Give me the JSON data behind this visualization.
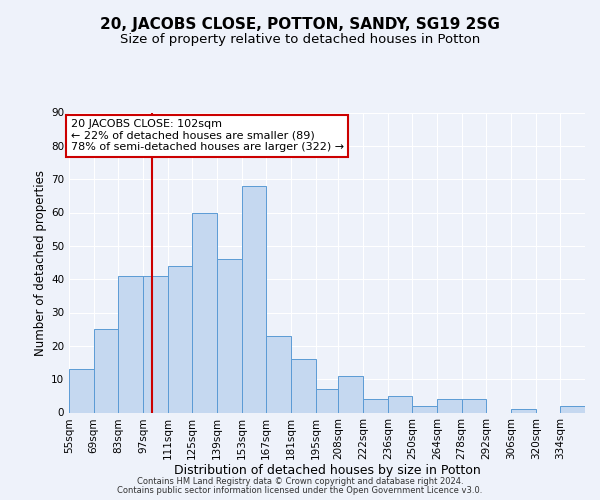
{
  "title": "20, JACOBS CLOSE, POTTON, SANDY, SG19 2SG",
  "subtitle": "Size of property relative to detached houses in Potton",
  "xlabel": "Distribution of detached houses by size in Potton",
  "ylabel": "Number of detached properties",
  "footer_line1": "Contains HM Land Registry data © Crown copyright and database right 2024.",
  "footer_line2": "Contains public sector information licensed under the Open Government Licence v3.0.",
  "bin_labels": [
    "55sqm",
    "69sqm",
    "83sqm",
    "97sqm",
    "111sqm",
    "125sqm",
    "139sqm",
    "153sqm",
    "167sqm",
    "181sqm",
    "195sqm",
    "208sqm",
    "222sqm",
    "236sqm",
    "250sqm",
    "264sqm",
    "278sqm",
    "292sqm",
    "306sqm",
    "320sqm",
    "334sqm"
  ],
  "bar_values": [
    13,
    25,
    41,
    41,
    44,
    60,
    46,
    68,
    23,
    16,
    7,
    11,
    4,
    5,
    2,
    4,
    4,
    0,
    1,
    0,
    2
  ],
  "bin_edges": [
    55,
    69,
    83,
    97,
    111,
    125,
    139,
    153,
    167,
    181,
    195,
    208,
    222,
    236,
    250,
    264,
    278,
    292,
    306,
    320,
    334,
    348
  ],
  "bar_color": "#c5d8f0",
  "bar_edge_color": "#5b9bd5",
  "vline_x": 102,
  "vline_color": "#cc0000",
  "annotation_line1": "20 JACOBS CLOSE: 102sqm",
  "annotation_line2": "← 22% of detached houses are smaller (89)",
  "annotation_line3": "78% of semi-detached houses are larger (322) →",
  "annotation_box_color": "#ffffff",
  "annotation_box_edge_color": "#cc0000",
  "ylim": [
    0,
    90
  ],
  "yticks": [
    0,
    10,
    20,
    30,
    40,
    50,
    60,
    70,
    80,
    90
  ],
  "background_color": "#eef2fa",
  "grid_color": "#ffffff",
  "title_fontsize": 11,
  "subtitle_fontsize": 9.5,
  "xlabel_fontsize": 9,
  "ylabel_fontsize": 8.5,
  "tick_fontsize": 7.5,
  "annotation_fontsize": 8,
  "footer_fontsize": 6
}
